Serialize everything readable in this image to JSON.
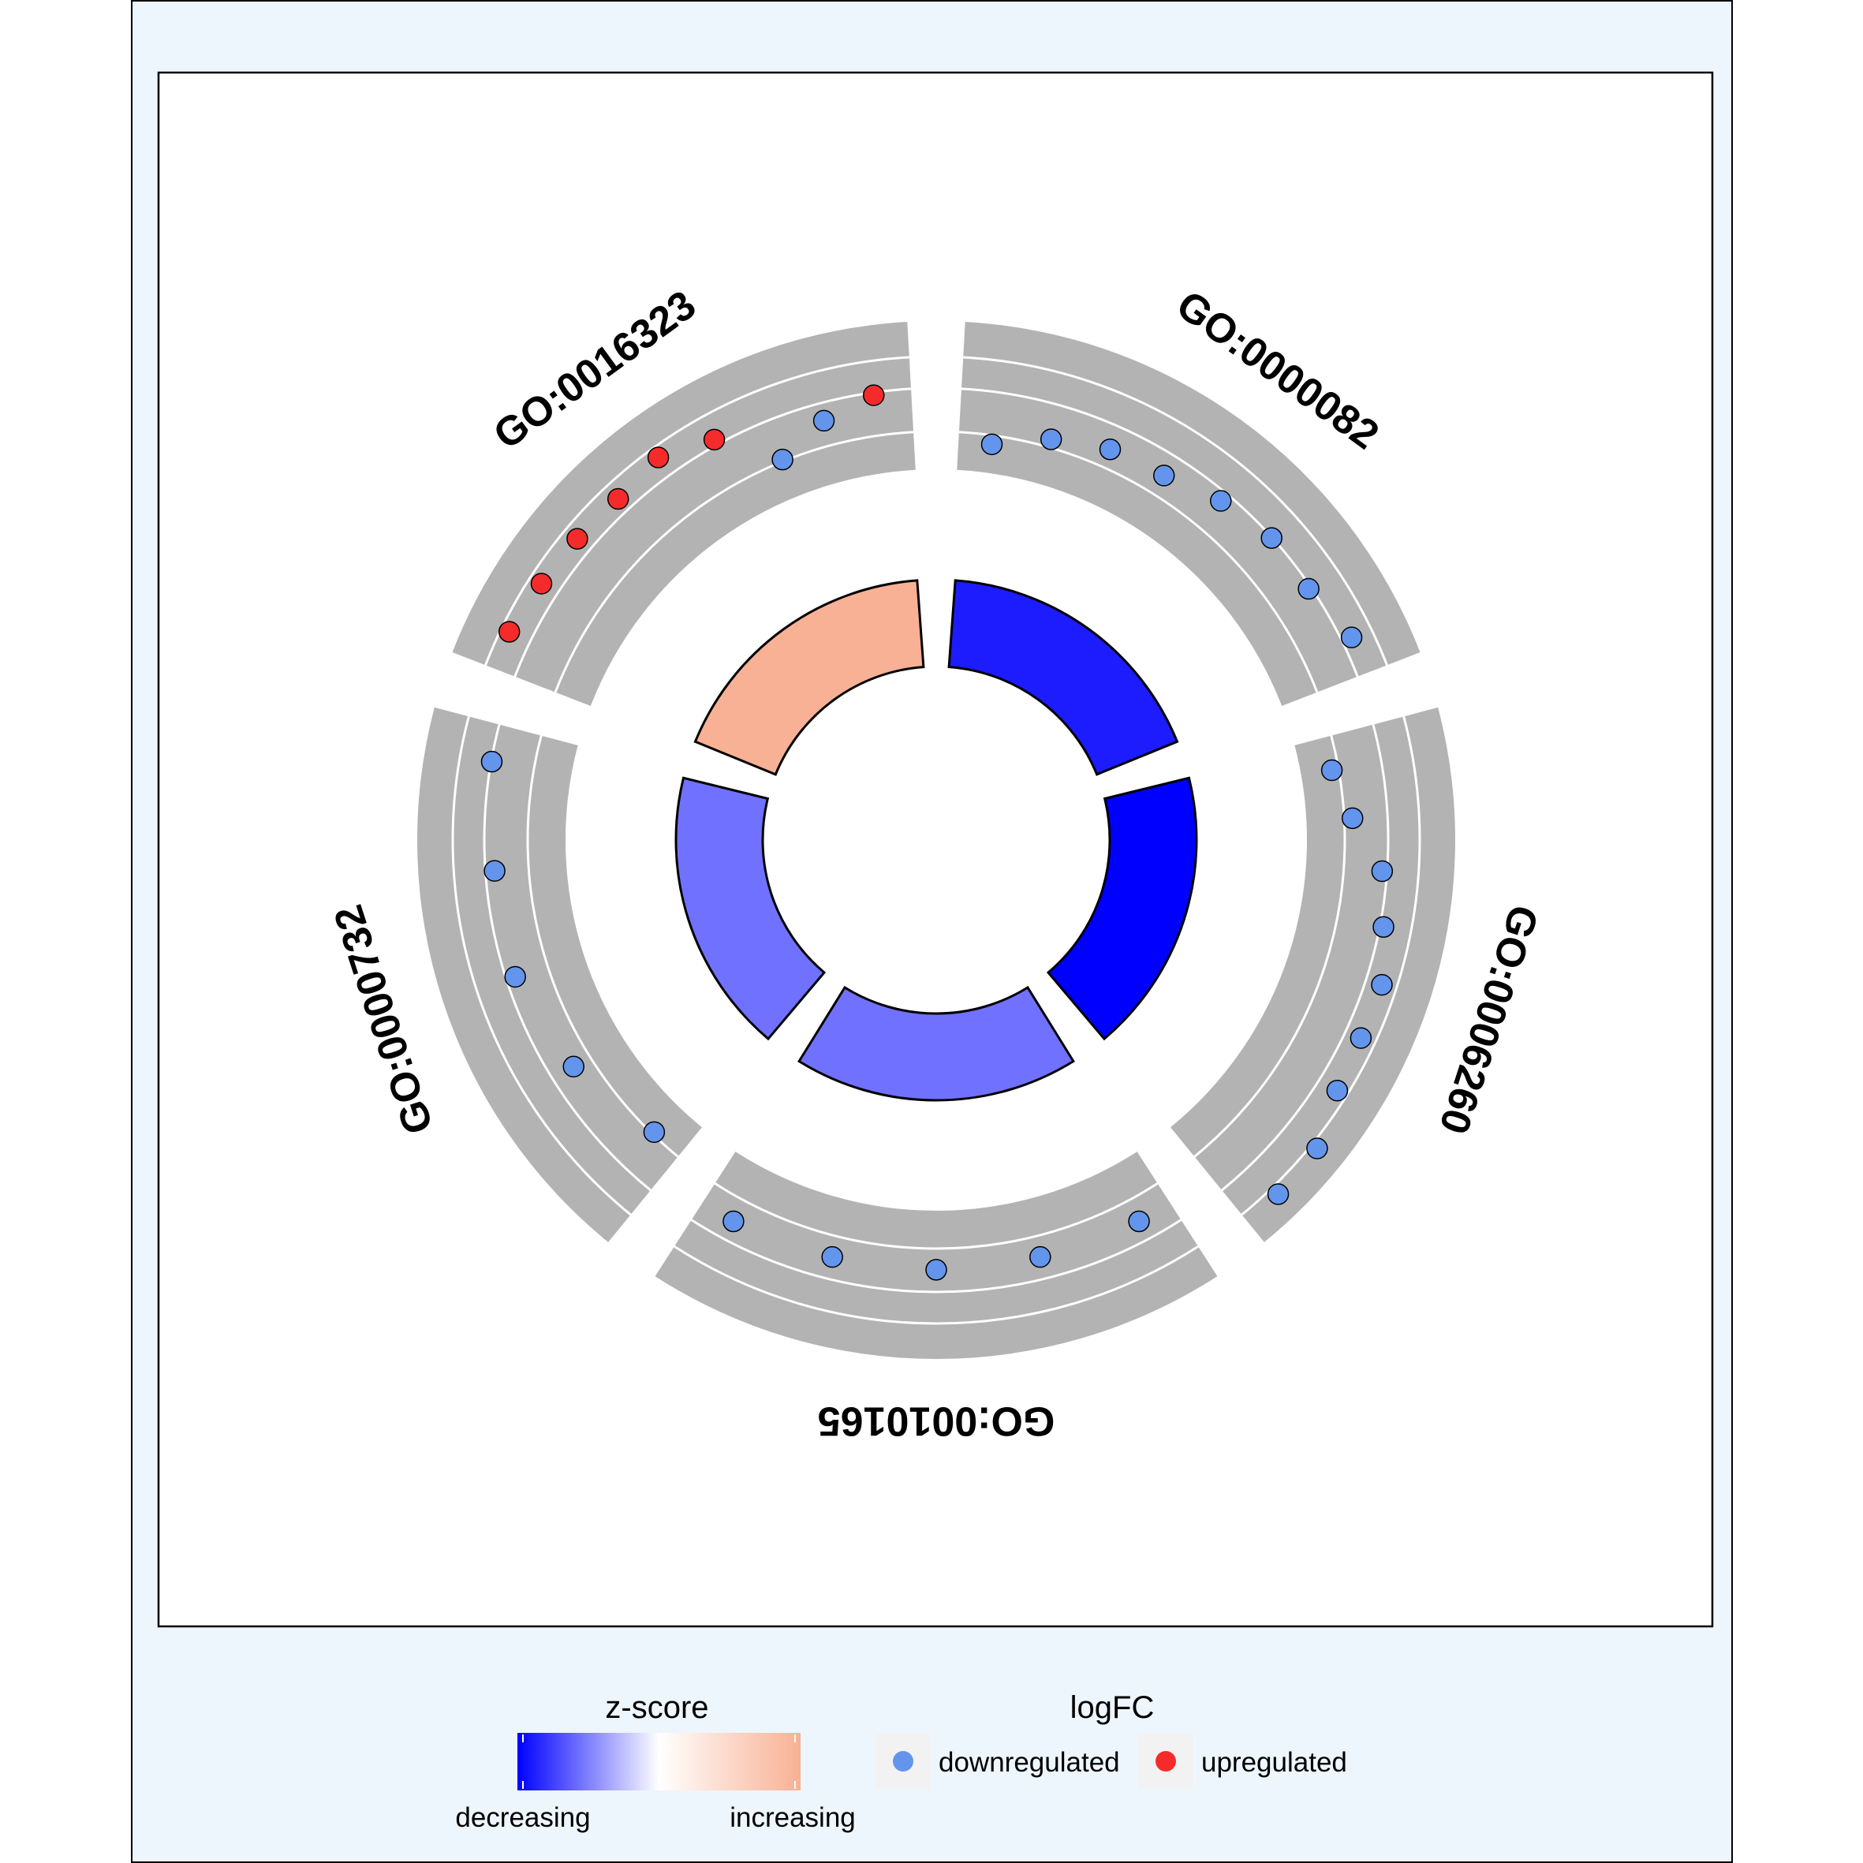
{
  "chart_data": {
    "type": "circular-go-plot",
    "terms": [
      {
        "id": "GO:0000082",
        "zscore": -3.2,
        "logfc": [
          -2.1,
          -1.3,
          -0.8,
          -0.7,
          -0.1,
          0.3,
          0.2,
          0.8
        ]
      },
      {
        "id": "GO:0006260",
        "zscore": -3.6,
        "logfc": [
          -2.0,
          -1.3,
          0.1,
          0.5,
          1.1,
          1.1,
          1.3,
          2.1,
          2.2
        ]
      },
      {
        "id": "GO:0010165",
        "zscore": -2.0,
        "logfc": [
          -0.6,
          -0.7,
          -0.7,
          -0.7,
          -0.6
        ]
      },
      {
        "id": "GO:0000732",
        "zscore": -2.0,
        "logfc": [
          -1.8,
          -0.8,
          -0.1,
          -0.1,
          0.3
        ]
      },
      {
        "id": "GO:0016323",
        "zscore": 0.8,
        "logfc": [
          1.4,
          1.2,
          1.1,
          1.0,
          1.3,
          0.6,
          -1.6,
          -0.5,
          0.2
        ]
      }
    ],
    "outer_track_range": [
      -3,
      3
    ],
    "legend": {
      "zscore_title": "z-score",
      "zscore_low_label": "decreasing",
      "zscore_high_label": "increasing",
      "logfc_title": "logFC",
      "logfc_entries": [
        {
          "label": "downregulated",
          "color": "#6495ed"
        },
        {
          "label": "upregulated",
          "color": "#f52b2b"
        }
      ]
    },
    "colors": {
      "track": "#b3b3b3",
      "grid": "#ffffff",
      "zscore_low": "#0000ff",
      "zscore_mid": "#ffffff",
      "zscore_high": "#f8b194",
      "downregulated": "#6495ed",
      "upregulated": "#f52b2b",
      "panel_background": "#eef6fd"
    }
  }
}
